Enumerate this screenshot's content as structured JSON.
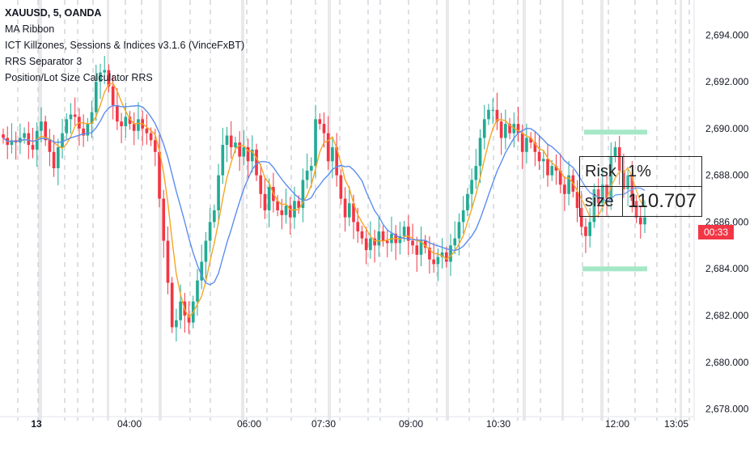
{
  "legend": {
    "title": "XAUUSD, 5, OANDA",
    "indicators": [
      "MA Ribbon",
      "ICT Killzones, Sessions & Indices v3.1.6 (VinceFxBT)",
      "RRS Separator 3",
      "Position/Lot Size Calculator RRS"
    ]
  },
  "price_axis": {
    "labels": [
      "2,694.000",
      "2,692.000",
      "2,690.000",
      "2,688.000",
      "2,686.000",
      "2,684.000",
      "2,682.000",
      "2,680.000",
      "2,678.000"
    ],
    "current_time_badge": "00:33"
  },
  "time_axis": {
    "labels": [
      "13",
      "04:00",
      "06:00",
      "07:30",
      "09:00",
      "10:30",
      "12:00",
      "13:05"
    ]
  },
  "calculator": {
    "risk_label": "Risk",
    "risk_value": "1%",
    "size_label": "size",
    "size_value": "110.707"
  },
  "colors": {
    "up": "#22ab94",
    "down": "#f23645",
    "ma_fast": "#f5a623",
    "ma_slow": "#5b8def",
    "zone": "#a5e8c8",
    "badge": "#f23645"
  },
  "chart_data": {
    "type": "candlestick",
    "symbol": "XAUUSD",
    "timeframe": "5",
    "source": "OANDA",
    "ylim": [
      2677.5,
      2695.5
    ],
    "x_ticks": [
      "13",
      "04:00",
      "06:00",
      "07:30",
      "09:00",
      "10:30",
      "12:00",
      "13:05"
    ],
    "close": [
      2689.6,
      2689.3,
      2689.5,
      2689.4,
      2689.6,
      2689.8,
      2689.3,
      2689.1,
      2689.9,
      2690.3,
      2689.5,
      2689.0,
      2688.3,
      2689.2,
      2689.8,
      2690.4,
      2690.6,
      2690.5,
      2690.0,
      2689.7,
      2690.2,
      2690.7,
      2692.0,
      2692.4,
      2692.5,
      2691.8,
      2691.0,
      2690.3,
      2690.1,
      2690.5,
      2690.2,
      2689.9,
      2690.4,
      2690.0,
      2689.8,
      2689.5,
      2689.0,
      2687.0,
      2685.2,
      2683.4,
      2681.5,
      2681.8,
      2682.6,
      2682.0,
      2681.7,
      2682.6,
      2683.5,
      2684.3,
      2685.2,
      2686.0,
      2686.5,
      2688.0,
      2689.3,
      2689.7,
      2689.2,
      2689.4,
      2688.8,
      2689.2,
      2688.6,
      2689.1,
      2688.0,
      2687.2,
      2686.5,
      2687.5,
      2686.9,
      2686.5,
      2686.3,
      2686.7,
      2686.2,
      2686.9,
      2686.6,
      2687.8,
      2688.2,
      2688.4,
      2690.4,
      2690.2,
      2689.8,
      2688.6,
      2689.2,
      2688.0,
      2687.0,
      2686.2,
      2686.8,
      2686.0,
      2685.6,
      2685.3,
      2684.8,
      2685.3,
      2685.0,
      2685.6,
      2685.2,
      2685.1,
      2685.5,
      2685.1,
      2685.4,
      2685.8,
      2685.2,
      2685.0,
      2684.6,
      2685.2,
      2684.9,
      2684.4,
      2684.2,
      2684.5,
      2684.7,
      2684.3,
      2685.0,
      2685.3,
      2686.0,
      2686.5,
      2687.2,
      2687.8,
      2688.4,
      2689.6,
      2690.4,
      2690.8,
      2690.8,
      2690.3,
      2689.6,
      2690.2,
      2689.8,
      2690.2,
      2689.8,
      2689.0,
      2689.6,
      2689.4,
      2689.0,
      2688.6,
      2688.7,
      2688.0,
      2688.4,
      2688.2,
      2687.6,
      2687.2,
      2688.0,
      2687.3,
      2686.6,
      2685.8,
      2685.4,
      2686.0,
      2687.4,
      2686.8,
      2687.6,
      2687.0,
      2688.8,
      2689.2,
      2688.2,
      2687.4,
      2688.0,
      2686.9,
      2686.2,
      2685.9,
      2686.2
    ],
    "series": [
      {
        "name": "MA Ribbon (fast)",
        "color": "#f5a623"
      },
      {
        "name": "MA Ribbon (slow)",
        "color": "#5b8def"
      }
    ],
    "position": {
      "risk": "1%",
      "size": "110.707"
    }
  }
}
